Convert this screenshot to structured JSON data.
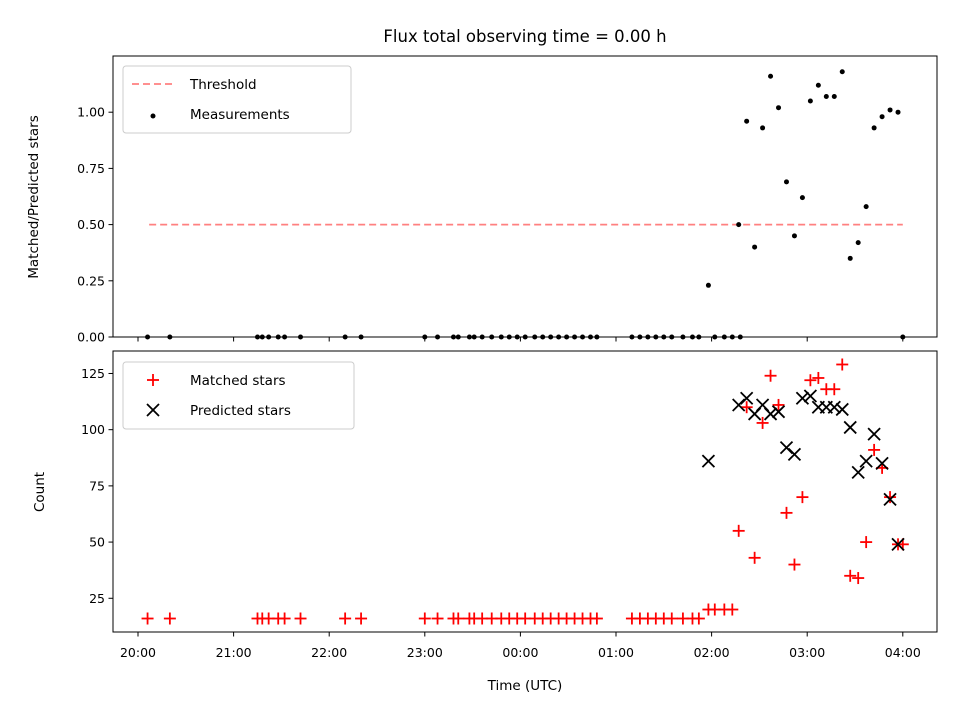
{
  "chart_data": [
    {
      "type": "scatter",
      "title": "Flux total observing time = 0.00 h",
      "ylabel": "Matched/Predicted stars",
      "xlabel": "",
      "xlim": [
        "20:00",
        "04:00"
      ],
      "ylim": [
        0,
        1.25
      ],
      "yticks": [
        0.0,
        0.25,
        0.5,
        0.75,
        1.0
      ],
      "ytick_labels": [
        "0.00",
        "0.25",
        "0.50",
        "0.75",
        "1.00"
      ],
      "legend_position": "top-left",
      "threshold": {
        "name": "Threshold",
        "value": 0.5,
        "x_start": "20:07",
        "x_end": "04:00",
        "color": "#ff8080",
        "style": "dashed"
      },
      "series": [
        {
          "name": "Measurements",
          "marker": "dot",
          "color": "#000000",
          "points": [
            [
              "20:06",
              0
            ],
            [
              "20:20",
              0
            ],
            [
              "21:15",
              0
            ],
            [
              "21:18",
              0
            ],
            [
              "21:22",
              0
            ],
            [
              "21:28",
              0
            ],
            [
              "21:32",
              0
            ],
            [
              "21:42",
              0
            ],
            [
              "22:10",
              0
            ],
            [
              "22:20",
              0
            ],
            [
              "23:00",
              0
            ],
            [
              "23:08",
              0
            ],
            [
              "23:18",
              0
            ],
            [
              "23:21",
              0
            ],
            [
              "23:28",
              0
            ],
            [
              "23:31",
              0
            ],
            [
              "23:36",
              0
            ],
            [
              "23:42",
              0
            ],
            [
              "23:48",
              0
            ],
            [
              "23:53",
              0
            ],
            [
              "23:58",
              0
            ],
            [
              "00:03",
              0
            ],
            [
              "00:09",
              0
            ],
            [
              "00:14",
              0
            ],
            [
              "00:19",
              0
            ],
            [
              "00:24",
              0
            ],
            [
              "00:29",
              0
            ],
            [
              "00:34",
              0
            ],
            [
              "00:39",
              0
            ],
            [
              "00:44",
              0
            ],
            [
              "00:48",
              0
            ],
            [
              "01:10",
              0
            ],
            [
              "01:15",
              0
            ],
            [
              "01:20",
              0
            ],
            [
              "01:25",
              0
            ],
            [
              "01:30",
              0
            ],
            [
              "01:35",
              0
            ],
            [
              "01:42",
              0
            ],
            [
              "01:48",
              0
            ],
            [
              "01:52",
              0
            ],
            [
              "02:02",
              0
            ],
            [
              "02:08",
              0
            ],
            [
              "02:13",
              0
            ],
            [
              "02:18",
              0
            ],
            [
              "01:58",
              0.23
            ],
            [
              "02:17",
              0.5
            ],
            [
              "02:22",
              0.96
            ],
            [
              "02:27",
              0.4
            ],
            [
              "02:32",
              0.93
            ],
            [
              "02:37",
              1.16
            ],
            [
              "02:42",
              1.02
            ],
            [
              "02:47",
              0.69
            ],
            [
              "02:52",
              0.45
            ],
            [
              "02:57",
              0.62
            ],
            [
              "03:02",
              1.05
            ],
            [
              "03:07",
              1.12
            ],
            [
              "03:12",
              1.07
            ],
            [
              "03:17",
              1.07
            ],
            [
              "03:22",
              1.18
            ],
            [
              "03:27",
              0.35
            ],
            [
              "03:32",
              0.42
            ],
            [
              "03:37",
              0.58
            ],
            [
              "03:42",
              0.93
            ],
            [
              "03:47",
              0.98
            ],
            [
              "03:52",
              1.01
            ],
            [
              "03:57",
              1.0
            ],
            [
              "04:00",
              0
            ]
          ]
        }
      ]
    },
    {
      "type": "scatter",
      "title": "",
      "ylabel": "Count",
      "xlabel": "Time (UTC)",
      "xlim": [
        "20:00",
        "04:00"
      ],
      "ylim": [
        10,
        135
      ],
      "yticks": [
        25,
        50,
        75,
        100,
        125
      ],
      "ytick_labels": [
        "25",
        "50",
        "75",
        "100",
        "125"
      ],
      "xtick_labels": [
        "20:00",
        "21:00",
        "22:00",
        "23:00",
        "00:00",
        "01:00",
        "02:00",
        "03:00",
        "04:00"
      ],
      "legend_position": "top-left",
      "series": [
        {
          "name": "Matched stars",
          "marker": "plus",
          "color": "#ff0000",
          "points": [
            [
              "20:06",
              16
            ],
            [
              "20:20",
              16
            ],
            [
              "21:15",
              16
            ],
            [
              "21:18",
              16
            ],
            [
              "21:22",
              16
            ],
            [
              "21:28",
              16
            ],
            [
              "21:32",
              16
            ],
            [
              "21:42",
              16
            ],
            [
              "22:10",
              16
            ],
            [
              "22:20",
              16
            ],
            [
              "23:00",
              16
            ],
            [
              "23:08",
              16
            ],
            [
              "23:18",
              16
            ],
            [
              "23:21",
              16
            ],
            [
              "23:28",
              16
            ],
            [
              "23:31",
              16
            ],
            [
              "23:36",
              16
            ],
            [
              "23:42",
              16
            ],
            [
              "23:48",
              16
            ],
            [
              "23:53",
              16
            ],
            [
              "23:58",
              16
            ],
            [
              "00:03",
              16
            ],
            [
              "00:09",
              16
            ],
            [
              "00:14",
              16
            ],
            [
              "00:19",
              16
            ],
            [
              "00:24",
              16
            ],
            [
              "00:29",
              16
            ],
            [
              "00:34",
              16
            ],
            [
              "00:39",
              16
            ],
            [
              "00:44",
              16
            ],
            [
              "00:48",
              16
            ],
            [
              "01:10",
              16
            ],
            [
              "01:15",
              16
            ],
            [
              "01:20",
              16
            ],
            [
              "01:25",
              16
            ],
            [
              "01:30",
              16
            ],
            [
              "01:35",
              16
            ],
            [
              "01:42",
              16
            ],
            [
              "01:48",
              16
            ],
            [
              "01:52",
              16
            ],
            [
              "01:58",
              20
            ],
            [
              "02:02",
              20
            ],
            [
              "02:08",
              20
            ],
            [
              "02:13",
              20
            ],
            [
              "02:17",
              55
            ],
            [
              "02:22",
              110
            ],
            [
              "02:27",
              43
            ],
            [
              "02:32",
              103
            ],
            [
              "02:37",
              124
            ],
            [
              "02:42",
              111
            ],
            [
              "02:47",
              63
            ],
            [
              "02:52",
              40
            ],
            [
              "02:57",
              70
            ],
            [
              "03:02",
              122
            ],
            [
              "03:07",
              123
            ],
            [
              "03:12",
              118
            ],
            [
              "03:17",
              118
            ],
            [
              "03:22",
              129
            ],
            [
              "03:27",
              35
            ],
            [
              "03:32",
              34
            ],
            [
              "03:37",
              50
            ],
            [
              "03:42",
              91
            ],
            [
              "03:47",
              83
            ],
            [
              "03:52",
              70
            ],
            [
              "03:57",
              49
            ],
            [
              "04:00",
              49
            ]
          ]
        },
        {
          "name": "Predicted stars",
          "marker": "x",
          "color": "#000000",
          "points": [
            [
              "01:58",
              86
            ],
            [
              "02:17",
              111
            ],
            [
              "02:22",
              114
            ],
            [
              "02:27",
              107
            ],
            [
              "02:32",
              111
            ],
            [
              "02:37",
              107
            ],
            [
              "02:42",
              108
            ],
            [
              "02:47",
              92
            ],
            [
              "02:52",
              89
            ],
            [
              "02:57",
              114
            ],
            [
              "03:02",
              115
            ],
            [
              "03:07",
              110
            ],
            [
              "03:12",
              110
            ],
            [
              "03:17",
              110
            ],
            [
              "03:22",
              109
            ],
            [
              "03:27",
              101
            ],
            [
              "03:32",
              81
            ],
            [
              "03:37",
              86
            ],
            [
              "03:42",
              98
            ],
            [
              "03:47",
              85
            ],
            [
              "03:52",
              69
            ],
            [
              "03:57",
              49
            ]
          ]
        }
      ]
    }
  ]
}
